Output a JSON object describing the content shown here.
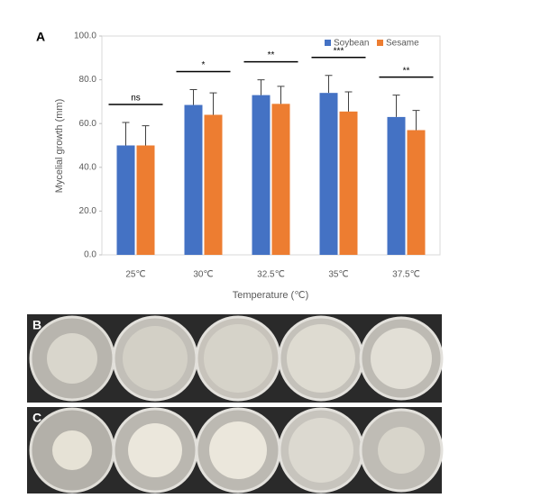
{
  "chart_data": {
    "type": "bar",
    "panel_label": "A",
    "x_label": "Temperature (℃)",
    "y_label": "Mycelial growth (mm)",
    "categories": [
      "25℃",
      "30℃",
      "32.5℃",
      "35℃",
      "37.5℃"
    ],
    "series": [
      {
        "name": "Soybean",
        "color": "#4472c4",
        "values": [
          50,
          68.5,
          73,
          74,
          63
        ],
        "errors": [
          10.5,
          7,
          7,
          8,
          10
        ]
      },
      {
        "name": "Sesame",
        "color": "#ed7d31",
        "values": [
          50,
          64,
          69,
          65.5,
          57
        ],
        "errors": [
          9,
          10,
          8,
          9,
          9
        ]
      }
    ],
    "annotations": [
      "ns",
      "*",
      "**",
      "***",
      "**"
    ],
    "ylim": [
      0,
      100
    ],
    "yticks": [
      {
        "value": 0,
        "label": "0.0"
      },
      {
        "value": 20,
        "label": "20.0"
      },
      {
        "value": 40,
        "label": "40.0"
      },
      {
        "value": 60,
        "label": "60.0"
      },
      {
        "value": 80,
        "label": "80.0"
      },
      {
        "value": 100,
        "label": "100.0"
      }
    ],
    "grid": false,
    "legend": "top-right"
  },
  "photo_panels": [
    {
      "label": "B"
    },
    {
      "label": "C"
    }
  ]
}
